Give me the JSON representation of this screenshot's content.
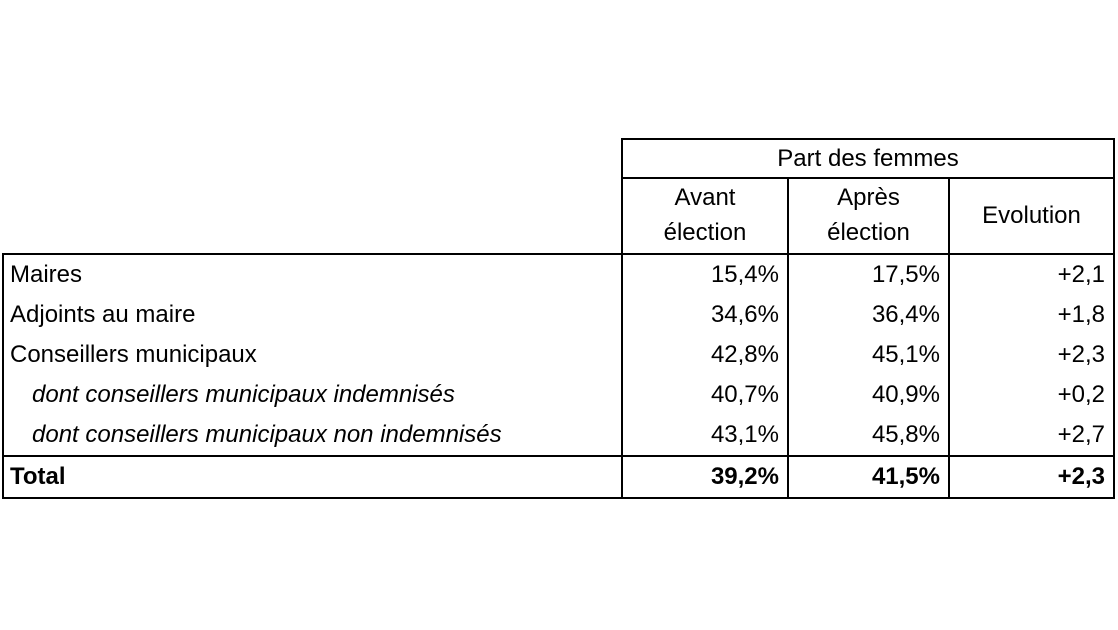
{
  "table": {
    "header": {
      "group_title": "Part des femmes",
      "columns": [
        "Avant\nélection",
        "Après\nélection",
        "Evolution"
      ]
    },
    "rows": [
      {
        "label": "Maires",
        "avant": "15,4%",
        "apres": "17,5%",
        "evolution": "+2,1"
      },
      {
        "label": "Adjoints au maire",
        "avant": "34,6%",
        "apres": "36,4%",
        "evolution": "+1,8"
      },
      {
        "label": "Conseillers municipaux",
        "avant": "42,8%",
        "apres": "45,1%",
        "evolution": "+2,3"
      },
      {
        "label": "dont conseillers municipaux indemnisés",
        "avant": "40,7%",
        "apres": "40,9%",
        "evolution": "+0,2"
      },
      {
        "label": "dont conseillers municipaux non indemnisés",
        "avant": "43,1%",
        "apres": "45,8%",
        "evolution": "+2,7"
      }
    ],
    "total": {
      "label": "Total",
      "avant": "39,2%",
      "apres": "41,5%",
      "evolution": "+2,3"
    }
  },
  "colors": {
    "border": "#000000",
    "text": "#000000",
    "background": "#ffffff"
  },
  "chart_data": {
    "type": "table",
    "title": "Part des femmes",
    "columns": [
      "Avant élection",
      "Après élection",
      "Evolution"
    ],
    "rows": [
      {
        "label": "Maires",
        "avant_election_pct": 15.4,
        "apres_election_pct": 17.5,
        "evolution_points": 2.1
      },
      {
        "label": "Adjoints au maire",
        "avant_election_pct": 34.6,
        "apres_election_pct": 36.4,
        "evolution_points": 1.8
      },
      {
        "label": "Conseillers municipaux",
        "avant_election_pct": 42.8,
        "apres_election_pct": 45.1,
        "evolution_points": 2.3
      },
      {
        "label": "dont conseillers municipaux indemnisés",
        "avant_election_pct": 40.7,
        "apres_election_pct": 40.9,
        "evolution_points": 0.2
      },
      {
        "label": "dont conseillers municipaux non indemnisés",
        "avant_election_pct": 43.1,
        "apres_election_pct": 45.8,
        "evolution_points": 2.7
      },
      {
        "label": "Total",
        "avant_election_pct": 39.2,
        "apres_election_pct": 41.5,
        "evolution_points": 2.3
      }
    ]
  }
}
